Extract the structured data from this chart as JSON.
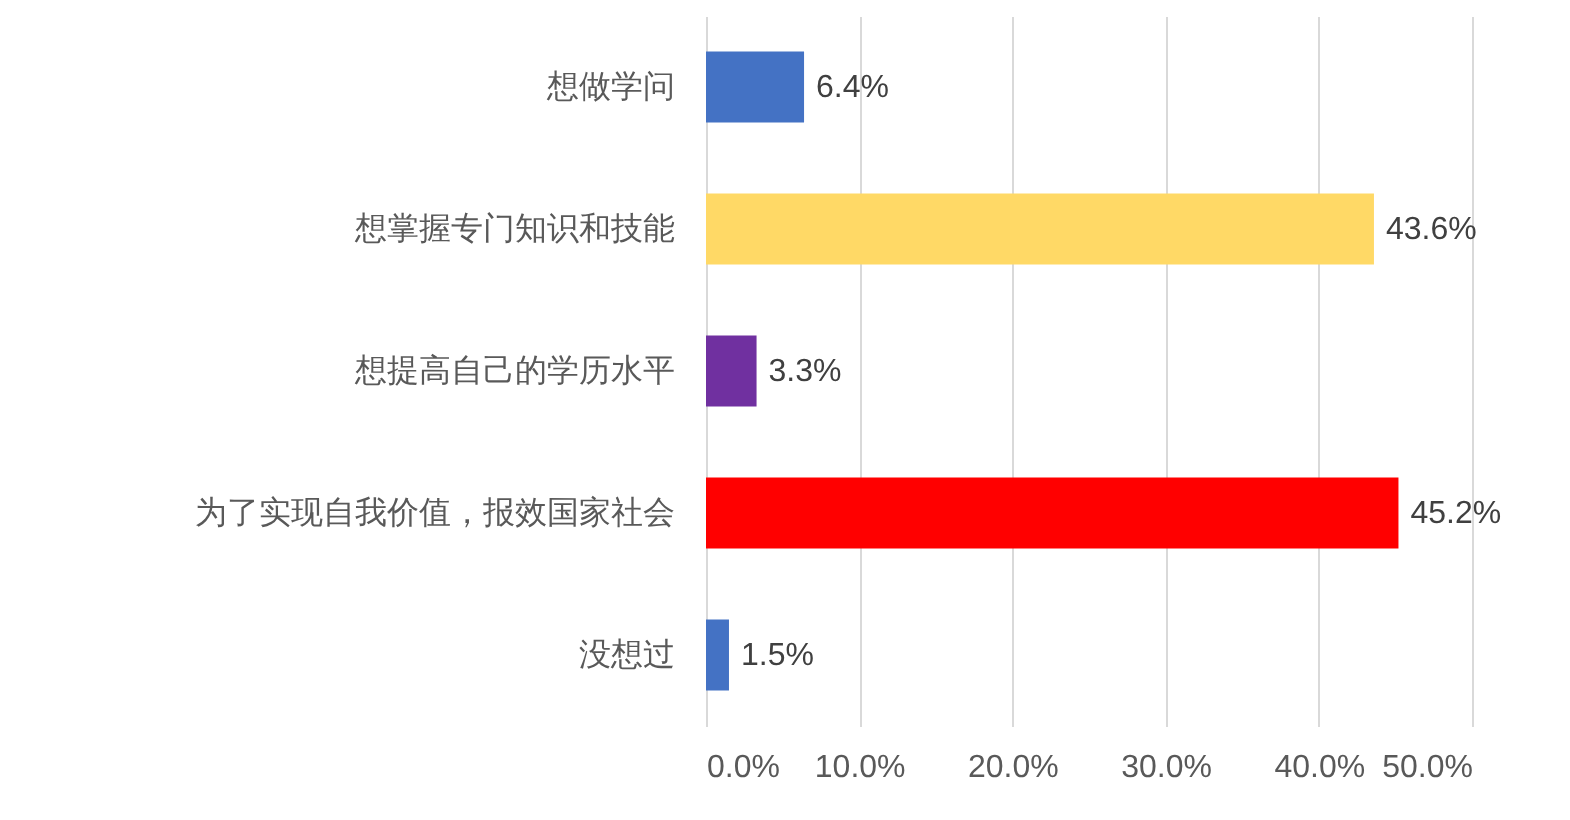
{
  "chart_data": {
    "type": "bar",
    "orientation": "horizontal",
    "categories": [
      "想做学问",
      "想掌握专门知识和技能",
      "想提高自己的学历水平",
      "为了实现自我价值，报效国家社会",
      "没想过"
    ],
    "values": [
      6.4,
      43.6,
      3.3,
      45.2,
      1.5
    ],
    "colors": [
      "#4472c4",
      "#ffd966",
      "#7030a0",
      "#ff0000",
      "#4472c4"
    ],
    "value_labels": [
      "6.4%",
      "43.6%",
      "3.3%",
      "45.2%",
      "1.5%"
    ],
    "xlim": [
      0,
      50
    ],
    "xticks": [
      {
        "value": 0,
        "label": "0.0%"
      },
      {
        "value": 10,
        "label": "10.0%"
      },
      {
        "value": 20,
        "label": "20.0%"
      },
      {
        "value": 30,
        "label": "30.0%"
      },
      {
        "value": 40,
        "label": "40.0%"
      },
      {
        "value": 50,
        "label": "50.0%"
      }
    ],
    "grid": "x"
  }
}
